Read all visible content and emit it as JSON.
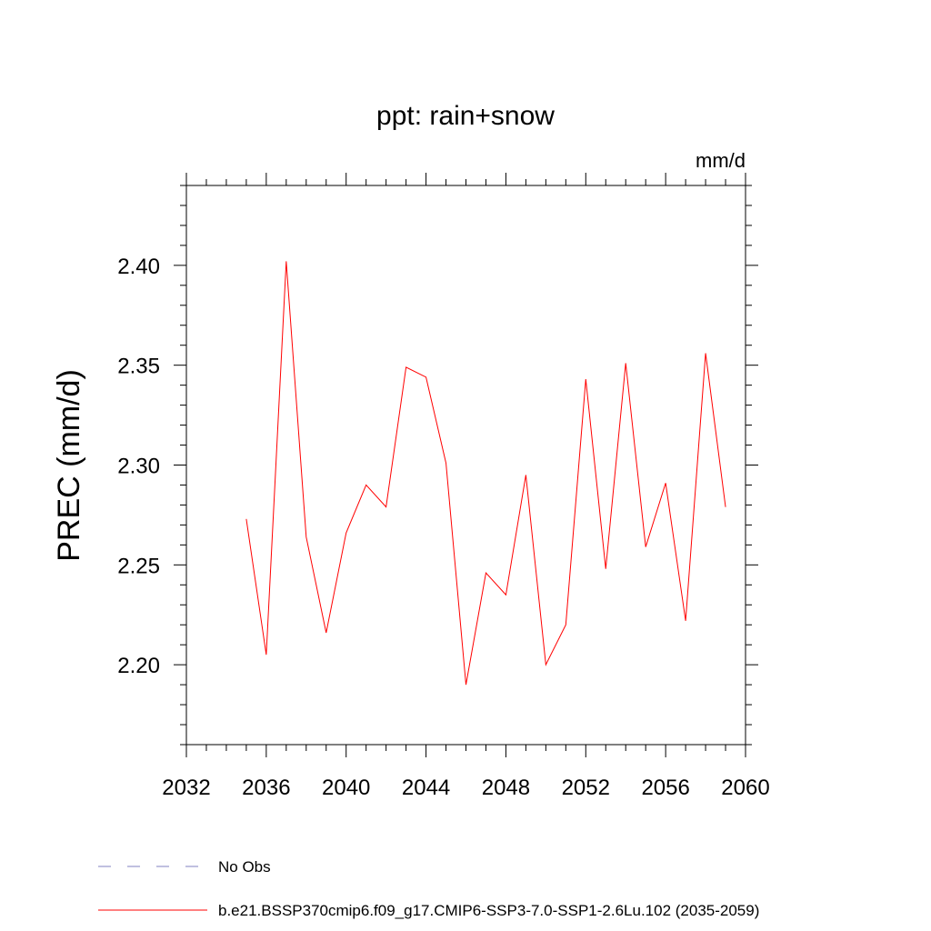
{
  "chart_data": {
    "type": "line",
    "title": "ppt: rain+snow",
    "units": "mm/d",
    "ylabel": "PREC  (mm/d)",
    "xlabel": "",
    "xlim": [
      2032,
      2060
    ],
    "ylim": [
      2.16,
      2.44
    ],
    "xticks": [
      2032,
      2036,
      2040,
      2044,
      2048,
      2052,
      2056,
      2060
    ],
    "xtick_labels": [
      "2032",
      "2036",
      "2040",
      "2044",
      "2048",
      "2052",
      "2056",
      "2060"
    ],
    "yticks": [
      2.2,
      2.25,
      2.3,
      2.35,
      2.4
    ],
    "ytick_labels": [
      "2.20",
      "2.25",
      "2.30",
      "2.35",
      "2.40"
    ],
    "grid": false,
    "series": [
      {
        "name": "b.e21.BSSP370cmip6.f09_g17.CMIP6-SSP3-7.0-SSP1-2.6Lu.102 (2035-2059)",
        "color": "#ff0000",
        "x": [
          2035,
          2036,
          2037,
          2038,
          2039,
          2040,
          2041,
          2042,
          2043,
          2044,
          2045,
          2046,
          2047,
          2048,
          2049,
          2050,
          2051,
          2052,
          2053,
          2054,
          2055,
          2056,
          2057,
          2058,
          2059
        ],
        "values": [
          2.273,
          2.205,
          2.402,
          2.264,
          2.216,
          2.266,
          2.29,
          2.279,
          2.349,
          2.344,
          2.301,
          2.19,
          2.246,
          2.235,
          2.295,
          2.2,
          2.22,
          2.343,
          2.248,
          2.351,
          2.259,
          2.291,
          2.222,
          2.356,
          2.279
        ]
      }
    ],
    "legend": [
      {
        "label": "No Obs",
        "style": "dashed",
        "color": "#8080c0"
      },
      {
        "label": "b.e21.BSSP370cmip6.f09_g17.CMIP6-SSP3-7.0-SSP1-2.6Lu.102 (2035-2059)",
        "style": "solid",
        "color": "#ff0000"
      }
    ],
    "legend_position": "bottom-left"
  }
}
